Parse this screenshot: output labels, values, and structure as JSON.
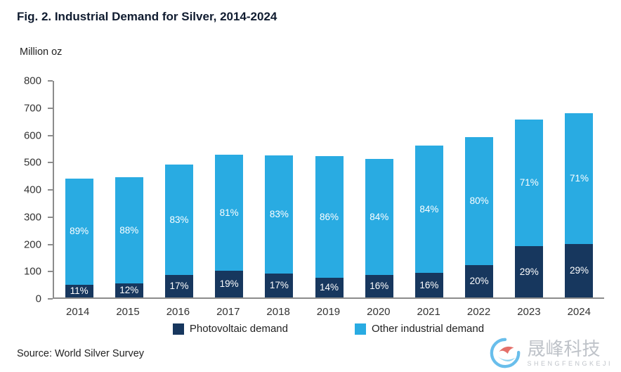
{
  "title": "Fig. 2. Industrial Demand for Silver, 2014-2024",
  "ylabel": "Million oz",
  "source": "Source: World Silver Survey",
  "legend": {
    "pv_label": "Photovoltaic demand",
    "other_label": "Other industrial demand"
  },
  "watermark": {
    "name_cn": "晟峰科技",
    "name_en": "SHENGFENGKEJI",
    "logo": "swirl-logo"
  },
  "colors": {
    "photovoltaic": "#17375E",
    "other_industrial": "#29ABE2",
    "axis": "#8c8c8c"
  },
  "chart_data": {
    "type": "bar",
    "stacked": true,
    "title": "Fig. 2. Industrial Demand for Silver, 2014-2024",
    "xlabel": "",
    "ylabel": "Million oz",
    "ylim": [
      0,
      800
    ],
    "yticks": [
      0,
      100,
      200,
      300,
      400,
      500,
      600,
      700,
      800
    ],
    "grid": false,
    "legend_position": "bottom",
    "categories": [
      "2014",
      "2015",
      "2016",
      "2017",
      "2018",
      "2019",
      "2020",
      "2021",
      "2022",
      "2023",
      "2024"
    ],
    "totals": [
      440,
      443,
      490,
      527,
      525,
      523,
      511,
      562,
      593,
      656,
      680
    ],
    "series": [
      {
        "name": "Photovoltaic demand",
        "color": "#17375E",
        "values": [
          48,
          53,
          83,
          100,
          89,
          73,
          82,
          90,
          119,
          190,
          197
        ],
        "labels": [
          "11%",
          "12%",
          "17%",
          "19%",
          "17%",
          "14%",
          "16%",
          "16%",
          "20%",
          "29%",
          "29%"
        ]
      },
      {
        "name": "Other industrial demand",
        "color": "#29ABE2",
        "values": [
          392,
          390,
          407,
          427,
          436,
          450,
          429,
          472,
          474,
          466,
          483
        ],
        "labels": [
          "89%",
          "88%",
          "83%",
          "81%",
          "83%",
          "86%",
          "84%",
          "84%",
          "80%",
          "71%",
          "71%"
        ]
      }
    ]
  }
}
